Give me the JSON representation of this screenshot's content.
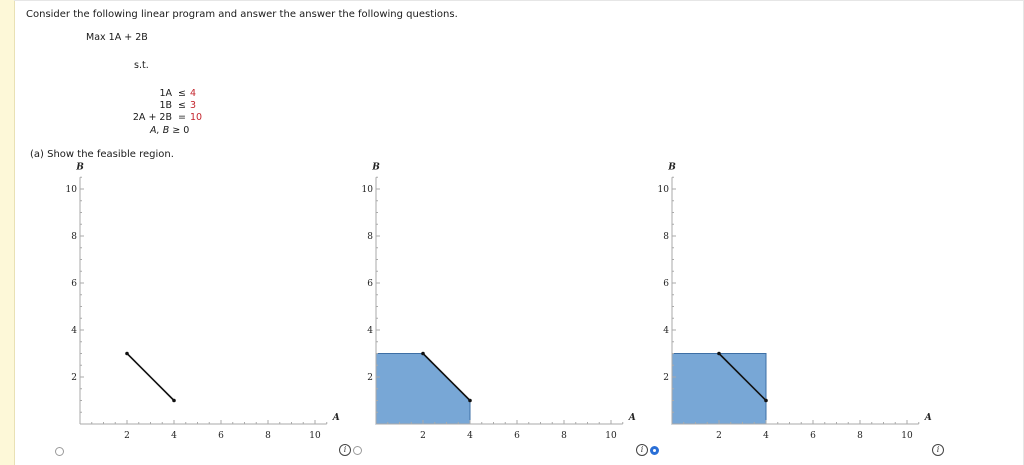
{
  "question": "Consider the following linear program and answer the answer the following questions.",
  "objective": "Max 1A + 2B",
  "st_label": "s.t.",
  "constraints": [
    {
      "lhs": "1A",
      "op": "≤",
      "rhs": "4"
    },
    {
      "lhs": "1B",
      "op": "≤",
      "rhs": "3"
    },
    {
      "lhs": "2A + 2B",
      "op": "=",
      "rhs": "10"
    }
  ],
  "nonneg": {
    "vars": "A, B",
    "op": "≥",
    "rhs": "0"
  },
  "part_a": "(a) Show the feasible region.",
  "chart_data": [
    {
      "type": "line",
      "xlabel": "A",
      "ylabel": "B",
      "xlim": [
        0,
        11
      ],
      "ylim": [
        0,
        11
      ],
      "xticks": [
        2,
        4,
        6,
        8,
        10
      ],
      "yticks": [
        2,
        4,
        6,
        8,
        10
      ],
      "region": [],
      "segment": [
        [
          2,
          3
        ],
        [
          4,
          1
        ]
      ],
      "selected": false
    },
    {
      "type": "area",
      "xlabel": "A",
      "ylabel": "B",
      "xlim": [
        0,
        11
      ],
      "ylim": [
        0,
        11
      ],
      "xticks": [
        2,
        4,
        6,
        8,
        10
      ],
      "yticks": [
        2,
        4,
        6,
        8,
        10
      ],
      "region": [
        [
          0,
          0
        ],
        [
          0,
          3
        ],
        [
          2,
          3
        ],
        [
          4,
          1
        ],
        [
          4,
          0
        ]
      ],
      "segment": [
        [
          2,
          3
        ],
        [
          4,
          1
        ]
      ],
      "selected": false
    },
    {
      "type": "area",
      "xlabel": "A",
      "ylabel": "B",
      "xlim": [
        0,
        11
      ],
      "ylim": [
        0,
        11
      ],
      "xticks": [
        2,
        4,
        6,
        8,
        10
      ],
      "yticks": [
        2,
        4,
        6,
        8,
        10
      ],
      "region": [
        [
          0,
          0
        ],
        [
          0,
          3
        ],
        [
          4,
          3
        ],
        [
          4,
          0
        ]
      ],
      "segment": [
        [
          2,
          3
        ],
        [
          4,
          1
        ]
      ],
      "selected": true
    }
  ],
  "colors": {
    "region": "#78a7d6",
    "radio_selected": "#2a6fd6",
    "constraint_rhs": "#c4262e"
  },
  "icons": {
    "info": "i"
  }
}
